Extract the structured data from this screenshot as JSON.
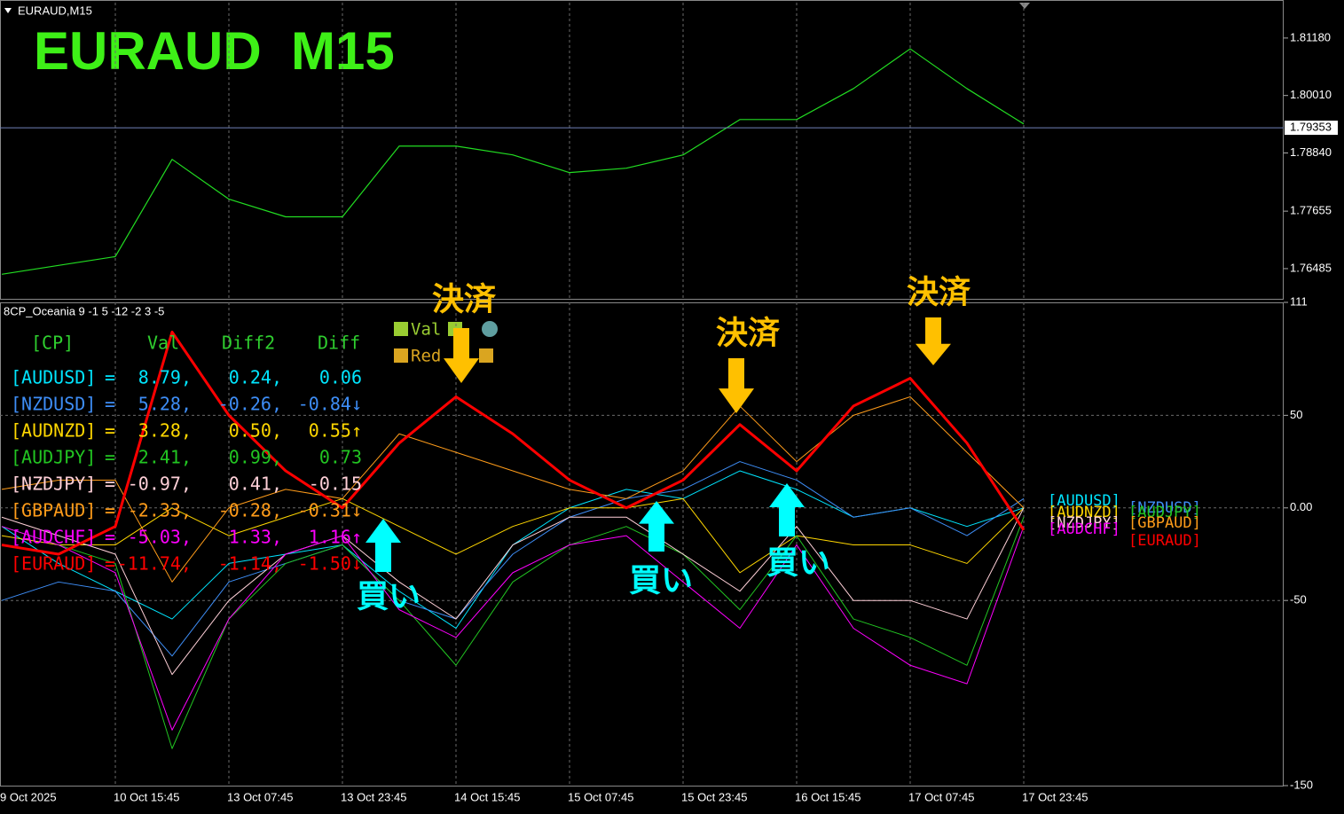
{
  "chart_data": [
    {
      "type": "line",
      "title": "EURAUD,M15",
      "heading": "EURAUD  M15",
      "values": [
        1.7637,
        1.7655,
        1.7673,
        1.7871,
        1.779,
        1.7754,
        1.7754,
        1.7898,
        1.7898,
        1.788,
        1.7844,
        1.7853,
        1.788,
        1.7952,
        1.7952,
        1.8015,
        1.8096,
        1.8015,
        1.7943
      ],
      "color": "#22dd22",
      "ylim": [
        1.7587,
        1.819
      ],
      "yticks": [
        1.76485,
        1.77655,
        {
          "value": 1.7884,
          "label": "1.78840"
        },
        {
          "value": 1.8001,
          "label": "1.80010"
        },
        {
          "value": 1.8118,
          "label": "1.81180"
        }
      ],
      "current": 1.79353,
      "grid": false
    },
    {
      "type": "line",
      "title": "8CP_Oceania 9 -1 5 -12 -2 3 -5",
      "categories": [
        "9 Oct 2025",
        null,
        "10 Oct 15:45",
        null,
        "13 Oct 07:45",
        null,
        "13 Oct 23:45",
        null,
        "14 Oct 15:45",
        null,
        "15 Oct 07:45",
        null,
        "15 Oct 23:45",
        null,
        "16 Oct 15:45",
        null,
        "17 Oct 07:45",
        null,
        "17 Oct 23:45"
      ],
      "series": [
        {
          "name": "[AUDUSD]",
          "color": "#00e5ff",
          "values": [
            -10,
            -30,
            -45,
            -60,
            -30,
            -25,
            -20,
            -45,
            -65,
            -20,
            0,
            10,
            5,
            20,
            10,
            -5,
            0,
            -10,
            0
          ]
        },
        {
          "name": "[NZDUSD]",
          "color": "#3e8ef7",
          "values": [
            -50,
            -40,
            -45,
            -80,
            -40,
            -30,
            -20,
            -50,
            -60,
            -25,
            -5,
            5,
            10,
            25,
            15,
            -5,
            0,
            -15,
            5
          ]
        },
        {
          "name": "[AUDNZD]",
          "color": "#ffd700",
          "values": [
            -15,
            -20,
            -20,
            0,
            -15,
            -5,
            5,
            -10,
            -25,
            -10,
            0,
            0,
            5,
            -35,
            -15,
            -20,
            -20,
            -30,
            0
          ]
        },
        {
          "name": "[AUDJPY]",
          "color": "#22c522",
          "values": [
            -10,
            -20,
            -30,
            -130,
            -60,
            -30,
            -20,
            -50,
            -85,
            -40,
            -20,
            -10,
            -25,
            -55,
            -15,
            -60,
            -70,
            -85,
            -5
          ]
        },
        {
          "name": "[NZDJPY]",
          "color": "#ffd0d8",
          "values": [
            -5,
            -15,
            -25,
            -90,
            -50,
            -25,
            -15,
            -40,
            -60,
            -20,
            -5,
            -5,
            -25,
            -45,
            -10,
            -50,
            -50,
            -60,
            0
          ]
        },
        {
          "name": "[GBPAUD]",
          "color": "#ff9c1a",
          "values": [
            10,
            15,
            15,
            -40,
            0,
            10,
            5,
            40,
            30,
            20,
            10,
            5,
            20,
            55,
            25,
            50,
            60,
            30,
            0
          ]
        },
        {
          "name": "[AUDCHF]",
          "color": "#ff00ff",
          "values": [
            -10,
            -20,
            -35,
            -120,
            -60,
            -25,
            -15,
            -55,
            -70,
            -35,
            -20,
            -15,
            -40,
            -65,
            -20,
            -65,
            -85,
            -95,
            -10
          ]
        },
        {
          "name": "[EURAUD]",
          "color": "#ff0000",
          "values": [
            -20,
            -25,
            -10,
            95,
            50,
            20,
            0,
            35,
            60,
            40,
            15,
            0,
            15,
            45,
            20,
            55,
            70,
            35,
            -12
          ]
        }
      ],
      "ylim": [
        -150,
        111
      ],
      "yticks": [
        -150,
        -50,
        {
          "value": 0,
          "label": "0.00"
        },
        50,
        111
      ],
      "grid": true,
      "legend_items": [
        "Val",
        "Red"
      ],
      "table": {
        "header": [
          "[CP]",
          "Val",
          "Diff2",
          "Diff"
        ],
        "rows": [
          [
            "[AUDUSD]",
            "=",
            "8.79,",
            "0.24,",
            "0.06"
          ],
          [
            "[NZDUSD]",
            "=",
            "5.28,",
            "-0.26,",
            "-0.84↓"
          ],
          [
            "[AUDNZD]",
            "=",
            "3.28,",
            "0.50,",
            "0.55↑"
          ],
          [
            "[AUDJPY]",
            "=",
            "2.41,",
            "0.99,",
            "0.73"
          ],
          [
            "[NZDJPY]",
            "=",
            "-0.97,",
            "0.41,",
            "-0.15"
          ],
          [
            "[GBPAUD]",
            "=",
            "-2.33,",
            "-0.28,",
            "-0.31↓"
          ],
          [
            "[AUDCHF]",
            "=",
            "-5.03,",
            "1.33,",
            "1.16↑"
          ],
          [
            "[EURAUD]",
            "=",
            "-11.74,",
            "-1.14,",
            "-1.50↓"
          ]
        ]
      },
      "annotations": [
        "決済",
        "決済",
        "決済",
        "買い",
        "買い",
        "買い"
      ]
    }
  ]
}
